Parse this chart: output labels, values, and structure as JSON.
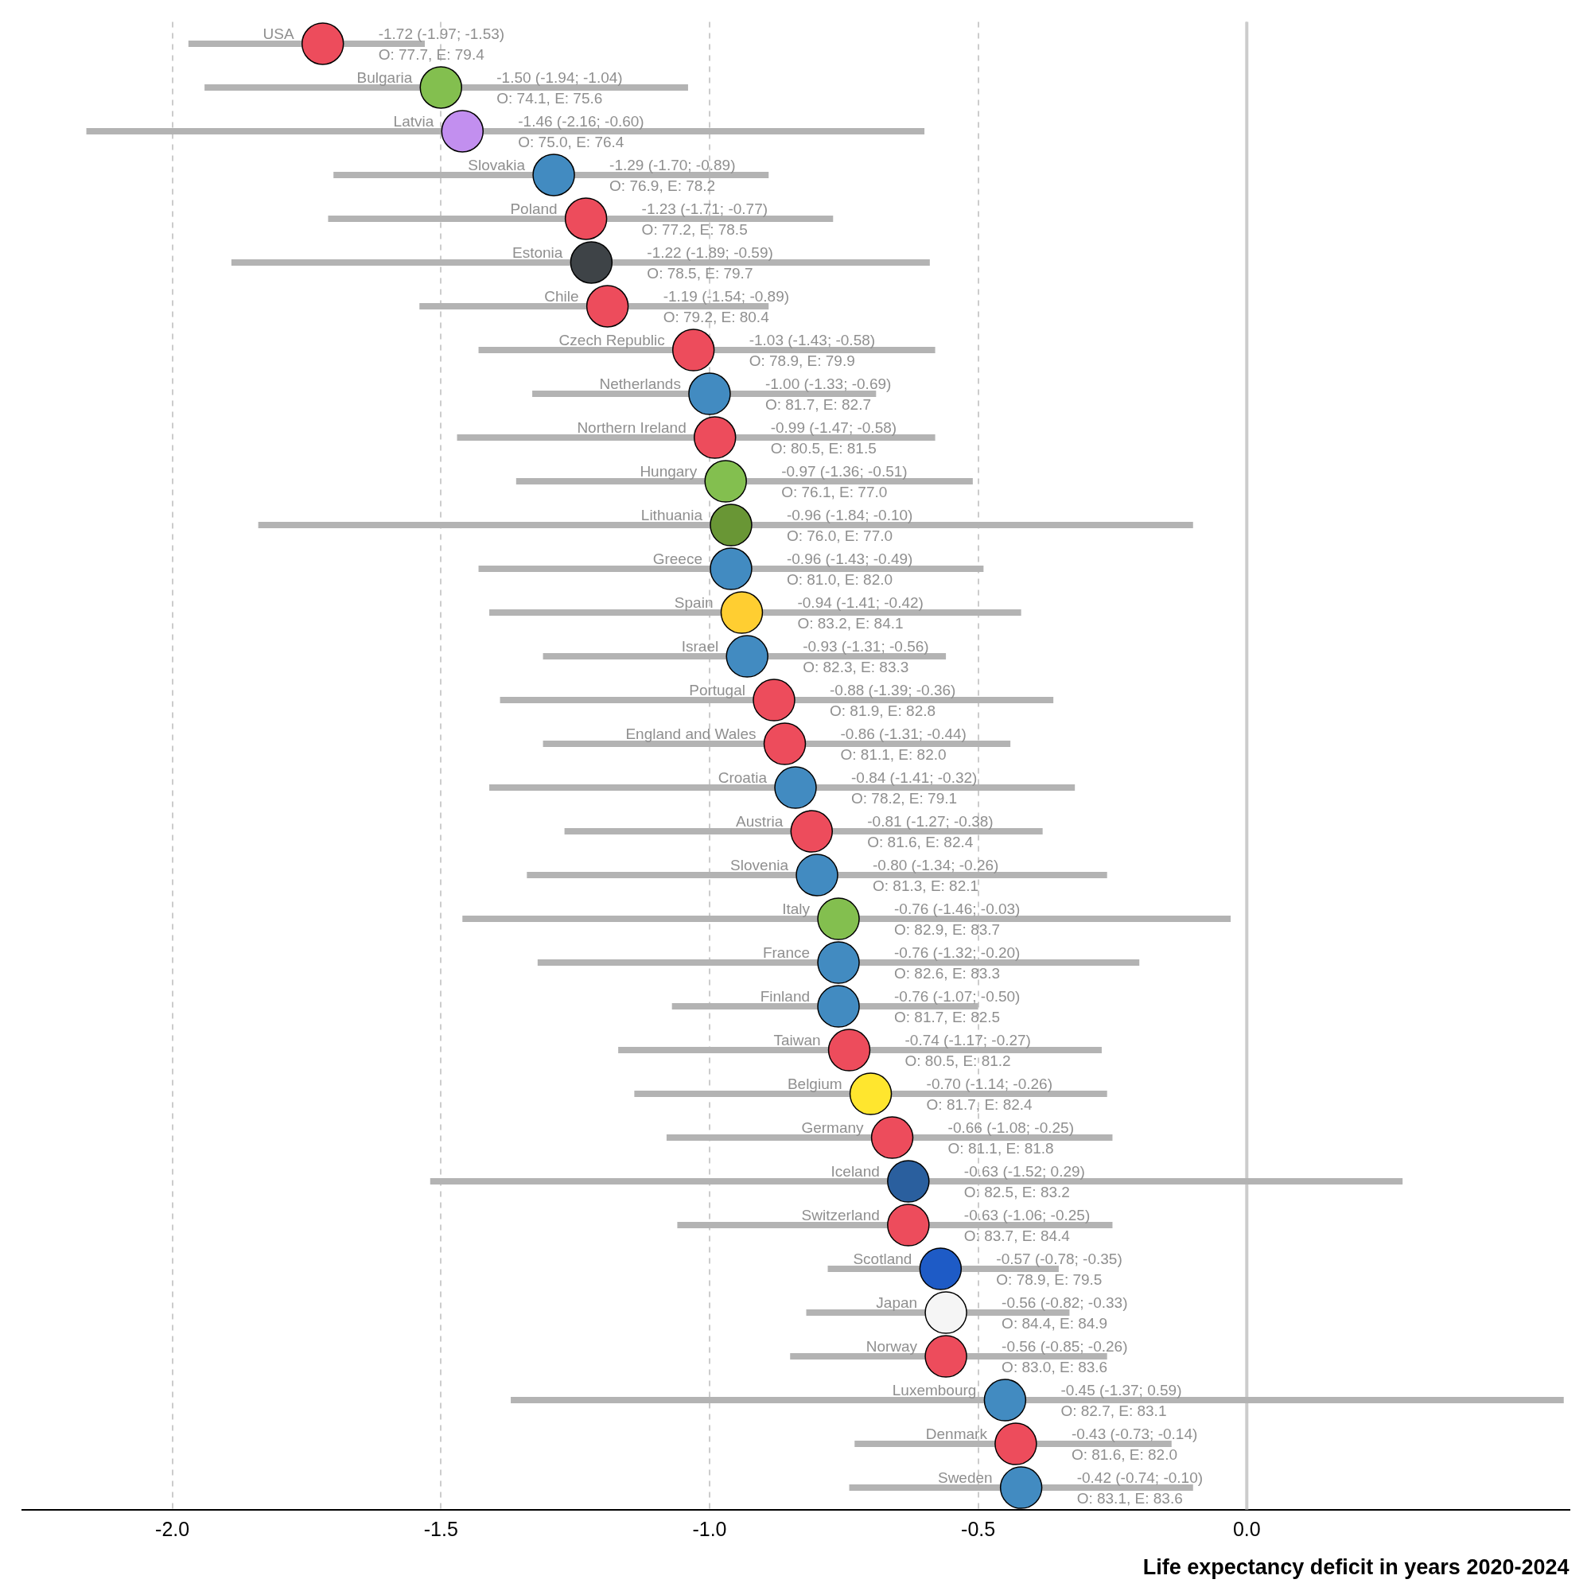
{
  "chart_data": {
    "type": "scatter",
    "orientation": "horizontal",
    "xlabel": "Life expectancy deficit in years 2020-2024",
    "categories": [
      "USA",
      "Bulgaria",
      "Latvia",
      "Slovakia",
      "Poland",
      "Estonia",
      "Chile",
      "Czech Republic",
      "Netherlands",
      "Northern Ireland",
      "Hungary",
      "Lithuania",
      "Greece",
      "Spain",
      "Israel",
      "Portugal",
      "England and Wales",
      "Croatia",
      "Austria",
      "Slovenia",
      "Italy",
      "France",
      "Finland",
      "Taiwan",
      "Belgium",
      "Germany",
      "Iceland",
      "Switzerland",
      "Scotland",
      "Japan",
      "Norway",
      "Luxembourg",
      "Denmark",
      "Sweden"
    ],
    "values": [
      -1.72,
      -1.5,
      -1.46,
      -1.29,
      -1.23,
      -1.22,
      -1.19,
      -1.03,
      -1.0,
      -0.99,
      -0.97,
      -0.96,
      -0.96,
      -0.94,
      -0.93,
      -0.88,
      -0.86,
      -0.84,
      -0.81,
      -0.8,
      -0.76,
      -0.76,
      -0.76,
      -0.74,
      -0.7,
      -0.66,
      -0.63,
      -0.63,
      -0.57,
      -0.56,
      -0.56,
      -0.45,
      -0.43,
      -0.42
    ],
    "errors": [
      [
        -1.97,
        -1.53
      ],
      [
        -1.94,
        -1.04
      ],
      [
        -2.16,
        -0.6
      ],
      [
        -1.7,
        -0.89
      ],
      [
        -1.71,
        -0.77
      ],
      [
        -1.89,
        -0.59
      ],
      [
        -1.54,
        -0.89
      ],
      [
        -1.43,
        -0.58
      ],
      [
        -1.33,
        -0.69
      ],
      [
        -1.47,
        -0.58
      ],
      [
        -1.36,
        -0.51
      ],
      [
        -1.84,
        -0.1
      ],
      [
        -1.43,
        -0.49
      ],
      [
        -1.41,
        -0.42
      ],
      [
        -1.31,
        -0.56
      ],
      [
        -1.39,
        -0.36
      ],
      [
        -1.31,
        -0.44
      ],
      [
        -1.41,
        -0.32
      ],
      [
        -1.27,
        -0.38
      ],
      [
        -1.34,
        -0.26
      ],
      [
        -1.46,
        -0.03
      ],
      [
        -1.32,
        -0.2
      ],
      [
        -1.07,
        -0.5
      ],
      [
        -1.17,
        -0.27
      ],
      [
        -1.14,
        -0.26
      ],
      [
        -1.08,
        -0.25
      ],
      [
        -1.52,
        0.29
      ],
      [
        -1.06,
        -0.25
      ],
      [
        -0.78,
        -0.35
      ],
      [
        -0.82,
        -0.33
      ],
      [
        -0.85,
        -0.26
      ],
      [
        -1.37,
        0.59
      ],
      [
        -0.73,
        -0.14
      ],
      [
        -0.74,
        -0.1
      ]
    ],
    "colors": [
      "#ed4c5c",
      "#83bf4f",
      "#c28fef",
      "#428bc1",
      "#ed4c5c",
      "#3e4347",
      "#ed4c5c",
      "#ed4c5c",
      "#428bc1",
      "#ed4c5c",
      "#83bf4f",
      "#699635",
      "#428bc1",
      "#ffce31",
      "#428bc1",
      "#ed4c5c",
      "#ed4c5c",
      "#428bc1",
      "#ed4c5c",
      "#428bc1",
      "#83bf4f",
      "#428bc1",
      "#428bc1",
      "#ed4c5c",
      "#ffe62e",
      "#ed4c5c",
      "#2a5f9e",
      "#ed4c5c",
      "#1e5bc6",
      "#f5f5f5",
      "#ed4c5c",
      "#428bc1",
      "#ed4c5c",
      "#428bc1"
    ],
    "value_labels": [
      "-1.72 (-1.97; -1.53)",
      "-1.50 (-1.94; -1.04)",
      "-1.46 (-2.16; -0.60)",
      "-1.29 (-1.70; -0.89)",
      "-1.23 (-1.71; -0.77)",
      "-1.22 (-1.89; -0.59)",
      "-1.19 (-1.54; -0.89)",
      "-1.03 (-1.43; -0.58)",
      "-1.00 (-1.33; -0.69)",
      "-0.99 (-1.47; -0.58)",
      "-0.97 (-1.36; -0.51)",
      "-0.96 (-1.84; -0.10)",
      "-0.96 (-1.43; -0.49)",
      "-0.94 (-1.41; -0.42)",
      "-0.93 (-1.31; -0.56)",
      "-0.88 (-1.39; -0.36)",
      "-0.86 (-1.31; -0.44)",
      "-0.84 (-1.41; -0.32)",
      "-0.81 (-1.27; -0.38)",
      "-0.80 (-1.34; -0.26)",
      "-0.76 (-1.46; -0.03)",
      "-0.76 (-1.32; -0.20)",
      "-0.76 (-1.07; -0.50)",
      "-0.74 (-1.17; -0.27)",
      "-0.70 (-1.14; -0.26)",
      "-0.66 (-1.08; -0.25)",
      "-0.63 (-1.52; 0.29)",
      "-0.63 (-1.06; -0.25)",
      "-0.57 (-0.78; -0.35)",
      "-0.56 (-0.82; -0.33)",
      "-0.56 (-0.85; -0.26)",
      "-0.45 (-1.37; 0.59)",
      "-0.43 (-0.73; -0.14)",
      "-0.42 (-0.74; -0.10)"
    ],
    "annotations": [
      "O: 77.7, E: 79.4",
      "O: 74.1, E: 75.6",
      "O: 75.0, E: 76.4",
      "O: 76.9, E: 78.2",
      "O: 77.2, E: 78.5",
      "O: 78.5, E: 79.7",
      "O: 79.2, E: 80.4",
      "O: 78.9, E: 79.9",
      "O: 81.7, E: 82.7",
      "O: 80.5, E: 81.5",
      "O: 76.1, E: 77.0",
      "O: 76.0, E: 77.0",
      "O: 81.0, E: 82.0",
      "O: 83.2, E: 84.1",
      "O: 82.3, E: 83.3",
      "O: 81.9, E: 82.8",
      "O: 81.1, E: 82.0",
      "O: 78.2, E: 79.1",
      "O: 81.6, E: 82.4",
      "O: 81.3, E: 82.1",
      "O: 82.9, E: 83.7",
      "O: 82.6, E: 83.3",
      "O: 81.7, E: 82.5",
      "O: 80.5, E: 81.2",
      "O: 81.7, E: 82.4",
      "O: 81.1, E: 81.8",
      "O: 82.5, E: 83.2",
      "O: 83.7, E: 84.4",
      "O: 78.9, E: 79.5",
      "O: 84.4, E: 84.9",
      "O: 83.0, E: 83.6",
      "O: 82.7, E: 83.1",
      "O: 81.6, E: 82.0",
      "O: 83.1, E: 83.6"
    ],
    "xlim": [
      -2.28,
      0.6
    ],
    "xticks": [
      {
        "value": -2,
        "label": "-2.0"
      },
      {
        "value": -1.5,
        "label": "-1.5"
      },
      {
        "value": -1,
        "label": "-1.0"
      },
      {
        "value": -0.5,
        "label": "-0.5"
      },
      {
        "value": 0,
        "label": "0.0"
      }
    ],
    "grid": "x",
    "ref_lines": [
      {
        "axis": "x",
        "value": 0,
        "color": "#cccccc"
      }
    ],
    "tick_labels": "x",
    "marker": "circle"
  }
}
